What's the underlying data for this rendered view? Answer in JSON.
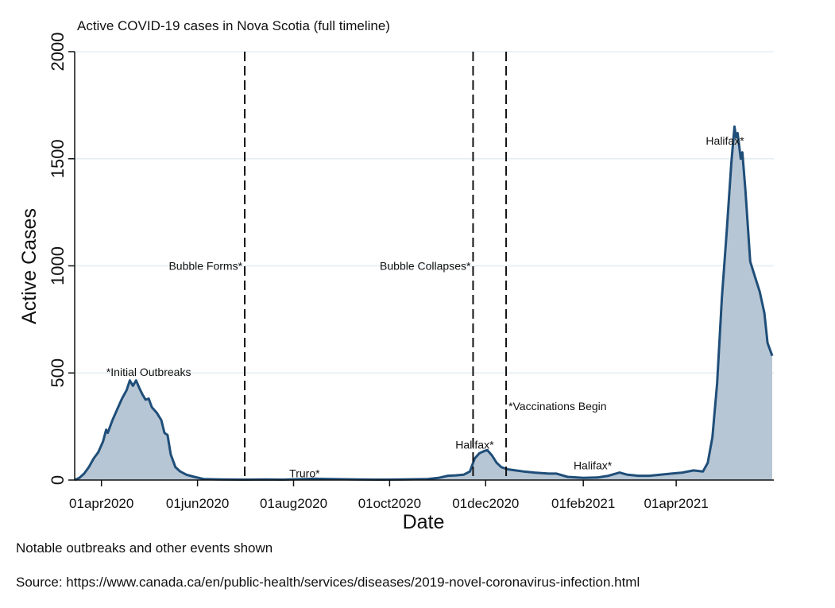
{
  "chart_data": {
    "type": "area",
    "title": "Active COVID-19 cases in Nova Scotia (full timeline)",
    "xlabel": "Date",
    "ylabel": "Active Cases",
    "x_start": "2020-03-15",
    "x_end": "2021-06-02",
    "ylim": [
      0,
      2000
    ],
    "yticks": [
      0,
      500,
      1000,
      1500,
      2000
    ],
    "xticks": [
      {
        "date": "2020-04-01",
        "label": "01apr2020"
      },
      {
        "date": "2020-06-01",
        "label": "01jun2020"
      },
      {
        "date": "2020-08-01",
        "label": "01aug2020"
      },
      {
        "date": "2020-10-01",
        "label": "01oct2020"
      },
      {
        "date": "2020-12-01",
        "label": "01dec2020"
      },
      {
        "date": "2021-02-01",
        "label": "01feb2021"
      },
      {
        "date": "2021-04-01",
        "label": "01apr2021"
      }
    ],
    "grid": true,
    "series": [
      {
        "color": "#1f4e79",
        "fill": "#b7c6d4",
        "points": [
          [
            "2020-03-15",
            0
          ],
          [
            "2020-03-18",
            10
          ],
          [
            "2020-03-21",
            30
          ],
          [
            "2020-03-24",
            60
          ],
          [
            "2020-03-27",
            100
          ],
          [
            "2020-03-30",
            130
          ],
          [
            "2020-04-02",
            180
          ],
          [
            "2020-04-04",
            235
          ],
          [
            "2020-04-05",
            220
          ],
          [
            "2020-04-08",
            280
          ],
          [
            "2020-04-11",
            330
          ],
          [
            "2020-04-14",
            380
          ],
          [
            "2020-04-17",
            420
          ],
          [
            "2020-04-19",
            465
          ],
          [
            "2020-04-21",
            440
          ],
          [
            "2020-04-23",
            465
          ],
          [
            "2020-04-25",
            430
          ],
          [
            "2020-04-27",
            400
          ],
          [
            "2020-04-29",
            375
          ],
          [
            "2020-05-01",
            380
          ],
          [
            "2020-05-03",
            340
          ],
          [
            "2020-05-06",
            315
          ],
          [
            "2020-05-09",
            280
          ],
          [
            "2020-05-11",
            220
          ],
          [
            "2020-05-13",
            210
          ],
          [
            "2020-05-15",
            120
          ],
          [
            "2020-05-18",
            60
          ],
          [
            "2020-05-21",
            40
          ],
          [
            "2020-05-25",
            25
          ],
          [
            "2020-05-30",
            15
          ],
          [
            "2020-06-05",
            5
          ],
          [
            "2020-06-15",
            3
          ],
          [
            "2020-07-01",
            2
          ],
          [
            "2020-07-15",
            3
          ],
          [
            "2020-07-25",
            2
          ],
          [
            "2020-08-05",
            4
          ],
          [
            "2020-08-15",
            6
          ],
          [
            "2020-08-25",
            5
          ],
          [
            "2020-09-10",
            3
          ],
          [
            "2020-09-25",
            2
          ],
          [
            "2020-10-10",
            3
          ],
          [
            "2020-10-25",
            5
          ],
          [
            "2020-11-01",
            10
          ],
          [
            "2020-11-07",
            20
          ],
          [
            "2020-11-12",
            22
          ],
          [
            "2020-11-17",
            25
          ],
          [
            "2020-11-21",
            40
          ],
          [
            "2020-11-24",
            100
          ],
          [
            "2020-11-27",
            125
          ],
          [
            "2020-11-30",
            135
          ],
          [
            "2020-12-02",
            140
          ],
          [
            "2020-12-05",
            115
          ],
          [
            "2020-12-08",
            80
          ],
          [
            "2020-12-11",
            60
          ],
          [
            "2020-12-15",
            50
          ],
          [
            "2020-12-20",
            45
          ],
          [
            "2020-12-25",
            40
          ],
          [
            "2021-01-01",
            35
          ],
          [
            "2021-01-10",
            30
          ],
          [
            "2021-01-15",
            30
          ],
          [
            "2021-01-22",
            15
          ],
          [
            "2021-02-01",
            10
          ],
          [
            "2021-02-10",
            12
          ],
          [
            "2021-02-17",
            20
          ],
          [
            "2021-02-24",
            35
          ],
          [
            "2021-03-01",
            25
          ],
          [
            "2021-03-08",
            20
          ],
          [
            "2021-03-15",
            20
          ],
          [
            "2021-03-22",
            25
          ],
          [
            "2021-03-29",
            30
          ],
          [
            "2021-04-05",
            35
          ],
          [
            "2021-04-12",
            45
          ],
          [
            "2021-04-18",
            40
          ],
          [
            "2021-04-21",
            80
          ],
          [
            "2021-04-24",
            200
          ],
          [
            "2021-04-27",
            450
          ],
          [
            "2021-04-30",
            850
          ],
          [
            "2021-05-03",
            1150
          ],
          [
            "2021-05-06",
            1480
          ],
          [
            "2021-05-08",
            1650
          ],
          [
            "2021-05-09",
            1600
          ],
          [
            "2021-05-10",
            1620
          ],
          [
            "2021-05-12",
            1500
          ],
          [
            "2021-05-13",
            1530
          ],
          [
            "2021-05-15",
            1350
          ],
          [
            "2021-05-18",
            1020
          ],
          [
            "2021-05-21",
            950
          ],
          [
            "2021-05-24",
            880
          ],
          [
            "2021-05-27",
            780
          ],
          [
            "2021-05-29",
            640
          ],
          [
            "2021-06-01",
            580
          ]
        ]
      }
    ],
    "vlines": [
      {
        "date": "2020-07-01",
        "label": "Bubble Forms*",
        "value": 1000,
        "anchor": "end"
      },
      {
        "date": "2020-11-23",
        "label": "Bubble Collapses*",
        "value": 1000,
        "anchor": "end"
      },
      {
        "date": "2020-12-14",
        "label": "*Vaccinations Begin",
        "value": 345,
        "anchor": "start"
      }
    ],
    "annotations": [
      {
        "date": "2020-05-01",
        "value": 505,
        "label": "*Initial Outbreaks"
      },
      {
        "date": "2020-08-08",
        "value": 32,
        "label": "Truro*"
      },
      {
        "date": "2020-11-24",
        "value": 165,
        "label": "Halifax*"
      },
      {
        "date": "2021-02-07",
        "value": 68,
        "label": "Halifax*"
      },
      {
        "date": "2021-05-02",
        "value": 1585,
        "label": "Halifax*"
      }
    ]
  },
  "notes": {
    "caption": "Notable outbreaks and other events shown",
    "source": "Source: https://www.canada.ca/en/public-health/services/diseases/2019-novel-coronavirus-infection.html"
  }
}
